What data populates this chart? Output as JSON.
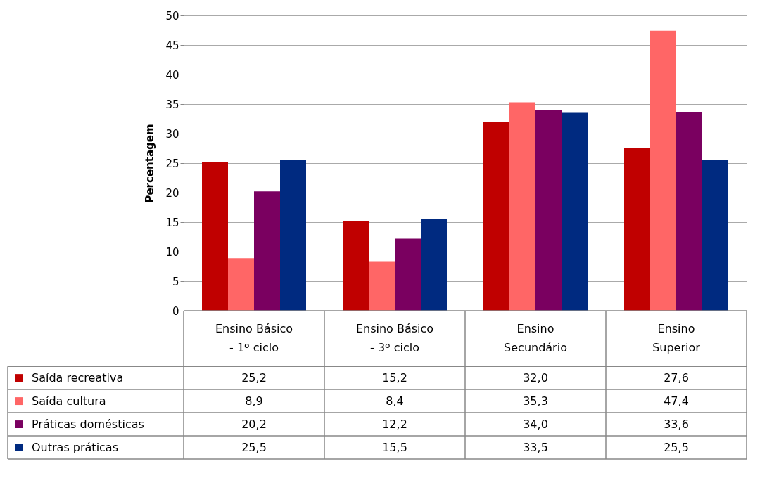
{
  "chart_data": {
    "type": "bar",
    "ylabel": "Percentagem",
    "categories": [
      "Ensino Básico - 1º ciclo",
      "Ensino Básico - 3º ciclo",
      "Ensino Secundário",
      "Ensino Superior"
    ],
    "series": [
      {
        "name": "Saída recreativa",
        "color": "#c00000",
        "values": [
          25.2,
          15.2,
          32.0,
          27.6
        ],
        "value_labels": [
          "25,2",
          "15,2",
          "32,0",
          "27,6"
        ]
      },
      {
        "name": "Saída cultura",
        "color": "#ff6666",
        "values": [
          8.9,
          8.4,
          35.3,
          47.4
        ],
        "value_labels": [
          "8,9",
          "8,4",
          "35,3",
          "47,4"
        ]
      },
      {
        "name": "Práticas domésticas",
        "color": "#7a0060",
        "values": [
          20.2,
          12.2,
          34.0,
          33.6
        ],
        "value_labels": [
          "20,2",
          "12,2",
          "34,0",
          "33,6"
        ]
      },
      {
        "name": "Outras práticas",
        "color": "#002a80",
        "values": [
          25.5,
          15.5,
          33.5,
          25.5
        ],
        "value_labels": [
          "25,5",
          "15,5",
          "33,5",
          "25,5"
        ]
      }
    ],
    "ylim": [
      0,
      50
    ],
    "yticks": [
      0,
      5,
      10,
      15,
      20,
      25,
      30,
      35,
      40,
      45,
      50
    ],
    "grid": "y",
    "legend": "bottom left"
  }
}
